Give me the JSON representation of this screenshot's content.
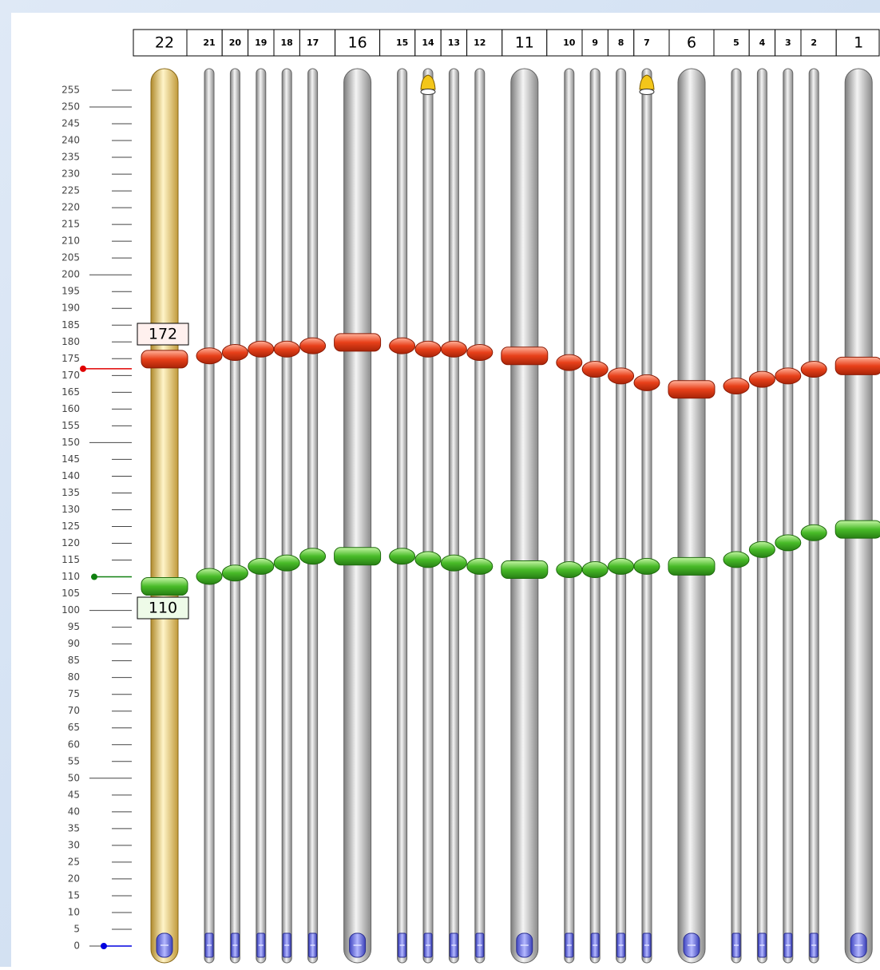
{
  "scale": {
    "ticks": [
      255,
      250,
      245,
      240,
      235,
      230,
      225,
      220,
      215,
      210,
      205,
      200,
      195,
      190,
      185,
      180,
      175,
      170,
      165,
      160,
      155,
      150,
      145,
      140,
      135,
      130,
      125,
      120,
      115,
      110,
      105,
      100,
      95,
      90,
      85,
      80,
      75,
      70,
      65,
      60,
      55,
      50,
      45,
      40,
      35,
      30,
      25,
      20,
      15,
      10,
      5,
      0
    ]
  },
  "columns": [
    {
      "label": "22",
      "high": 172,
      "low": 110,
      "bottom": 0,
      "wide": true,
      "selected": true
    },
    {
      "label": "21",
      "high": 173,
      "low": 113,
      "bottom": 0
    },
    {
      "label": "20",
      "high": 174,
      "low": 114,
      "bottom": 0
    },
    {
      "label": "19",
      "high": 175,
      "low": 116,
      "bottom": 0
    },
    {
      "label": "18",
      "high": 175,
      "low": 117,
      "bottom": 0
    },
    {
      "label": "17",
      "high": 176,
      "low": 119,
      "bottom": 0
    },
    {
      "label": "16",
      "high": 177,
      "low": 119,
      "bottom": 0,
      "wide": true
    },
    {
      "label": "15",
      "high": 176,
      "low": 119,
      "bottom": 0
    },
    {
      "label": "14",
      "high": 175,
      "low": 118,
      "bottom": 0,
      "bell": true
    },
    {
      "label": "13",
      "high": 175,
      "low": 117,
      "bottom": 0
    },
    {
      "label": "12",
      "high": 174,
      "low": 116,
      "bottom": 0
    },
    {
      "label": "11",
      "high": 173,
      "low": 115,
      "bottom": 0,
      "wide": true
    },
    {
      "label": "10",
      "high": 171,
      "low": 115,
      "bottom": 0
    },
    {
      "label": "9",
      "high": 169,
      "low": 115,
      "bottom": 0
    },
    {
      "label": "8",
      "high": 167,
      "low": 116,
      "bottom": 0
    },
    {
      "label": "7",
      "high": 165,
      "low": 116,
      "bottom": 0,
      "bell": true
    },
    {
      "label": "6",
      "high": 163,
      "low": 116,
      "bottom": 0,
      "wide": true
    },
    {
      "label": "5",
      "high": 164,
      "low": 118,
      "bottom": 0
    },
    {
      "label": "4",
      "high": 166,
      "low": 121,
      "bottom": 0
    },
    {
      "label": "3",
      "high": 167,
      "low": 123,
      "bottom": 0
    },
    {
      "label": "2",
      "high": 169,
      "low": 126,
      "bottom": 0
    },
    {
      "label": "1",
      "high": 170,
      "low": 127,
      "bottom": 0,
      "wide": true
    }
  ]
}
